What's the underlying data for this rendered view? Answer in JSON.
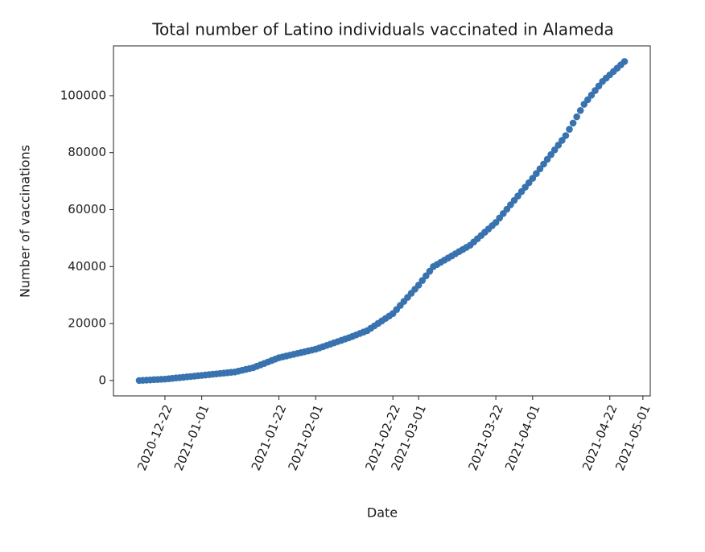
{
  "chart_data": {
    "type": "scatter",
    "title": "Total number of Latino individuals vaccinated in Alameda",
    "x_label": "Date",
    "y_label": "Number of vaccinations",
    "color": "#3873b0",
    "x": [
      "2020-12-15",
      "2020-12-16",
      "2020-12-17",
      "2020-12-18",
      "2020-12-19",
      "2020-12-20",
      "2020-12-21",
      "2020-12-22",
      "2020-12-23",
      "2020-12-24",
      "2020-12-25",
      "2020-12-26",
      "2020-12-27",
      "2020-12-28",
      "2020-12-29",
      "2020-12-30",
      "2020-12-31",
      "2021-01-01",
      "2021-01-02",
      "2021-01-03",
      "2021-01-04",
      "2021-01-05",
      "2021-01-06",
      "2021-01-07",
      "2021-01-08",
      "2021-01-09",
      "2021-01-10",
      "2021-01-11",
      "2021-01-12",
      "2021-01-13",
      "2021-01-14",
      "2021-01-15",
      "2021-01-16",
      "2021-01-17",
      "2021-01-18",
      "2021-01-19",
      "2021-01-20",
      "2021-01-21",
      "2021-01-22",
      "2021-01-23",
      "2021-01-24",
      "2021-01-25",
      "2021-01-26",
      "2021-01-27",
      "2021-01-28",
      "2021-01-29",
      "2021-01-30",
      "2021-01-31",
      "2021-02-01",
      "2021-02-02",
      "2021-02-03",
      "2021-02-04",
      "2021-02-05",
      "2021-02-06",
      "2021-02-07",
      "2021-02-08",
      "2021-02-09",
      "2021-02-10",
      "2021-02-11",
      "2021-02-12",
      "2021-02-13",
      "2021-02-14",
      "2021-02-15",
      "2021-02-16",
      "2021-02-17",
      "2021-02-18",
      "2021-02-19",
      "2021-02-20",
      "2021-02-21",
      "2021-02-22",
      "2021-02-23",
      "2021-02-24",
      "2021-02-25",
      "2021-02-26",
      "2021-02-27",
      "2021-02-28",
      "2021-03-01",
      "2021-03-02",
      "2021-03-03",
      "2021-03-04",
      "2021-03-05",
      "2021-03-06",
      "2021-03-07",
      "2021-03-08",
      "2021-03-09",
      "2021-03-10",
      "2021-03-11",
      "2021-03-12",
      "2021-03-13",
      "2021-03-14",
      "2021-03-15",
      "2021-03-16",
      "2021-03-17",
      "2021-03-18",
      "2021-03-19",
      "2021-03-20",
      "2021-03-21",
      "2021-03-22",
      "2021-03-23",
      "2021-03-24",
      "2021-03-25",
      "2021-03-26",
      "2021-03-27",
      "2021-03-28",
      "2021-03-29",
      "2021-03-30",
      "2021-03-31",
      "2021-04-01",
      "2021-04-02",
      "2021-04-03",
      "2021-04-04",
      "2021-04-05",
      "2021-04-06",
      "2021-04-07",
      "2021-04-08",
      "2021-04-09",
      "2021-04-10",
      "2021-04-11",
      "2021-04-12",
      "2021-04-13",
      "2021-04-14",
      "2021-04-15",
      "2021-04-16",
      "2021-04-17",
      "2021-04-18",
      "2021-04-19",
      "2021-04-20",
      "2021-04-21",
      "2021-04-22",
      "2021-04-23",
      "2021-04-24",
      "2021-04-25",
      "2021-04-26"
    ],
    "values": [
      0,
      70,
      140,
      210,
      290,
      360,
      430,
      500,
      630,
      760,
      890,
      1020,
      1150,
      1280,
      1410,
      1540,
      1670,
      1800,
      1930,
      2070,
      2200,
      2330,
      2470,
      2600,
      2730,
      2870,
      3000,
      3300,
      3600,
      3900,
      4200,
      4500,
      5000,
      5500,
      6000,
      6500,
      7000,
      7500,
      8000,
      8300,
      8600,
      8900,
      9200,
      9500,
      9800,
      10100,
      10400,
      10700,
      11000,
      11440,
      11890,
      12330,
      12780,
      13220,
      13670,
      14110,
      14560,
      15000,
      15500,
      16000,
      16500,
      17000,
      17500,
      18360,
      19210,
      20070,
      20930,
      21790,
      22640,
      23500,
      24930,
      26360,
      27790,
      29210,
      30640,
      32070,
      33500,
      35130,
      36750,
      38380,
      40000,
      40750,
      41500,
      42250,
      43000,
      43750,
      44500,
      45250,
      46000,
      46750,
      47500,
      48640,
      49790,
      50930,
      52070,
      53210,
      54360,
      55500,
      57050,
      58600,
      60150,
      61700,
      63250,
      64800,
      66350,
      67900,
      69450,
      71000,
      72670,
      74330,
      76000,
      77670,
      79330,
      81000,
      82670,
      84330,
      86000,
      88200,
      90400,
      92600,
      94800,
      97000,
      98600,
      100200,
      101800,
      103400,
      105000,
      106170,
      107330,
      108500,
      109670,
      110830,
      112000
    ],
    "xlim": [
      "2020-12-08",
      "2021-05-03"
    ],
    "xticks": [
      "2020-12-22",
      "2021-01-01",
      "2021-01-22",
      "2021-02-01",
      "2021-02-22",
      "2021-03-01",
      "2021-03-22",
      "2021-04-01",
      "2021-04-22",
      "2021-05-01"
    ],
    "ylim": [
      -5400,
      117500
    ],
    "yticks": [
      0,
      20000,
      40000,
      60000,
      80000,
      100000
    ]
  }
}
